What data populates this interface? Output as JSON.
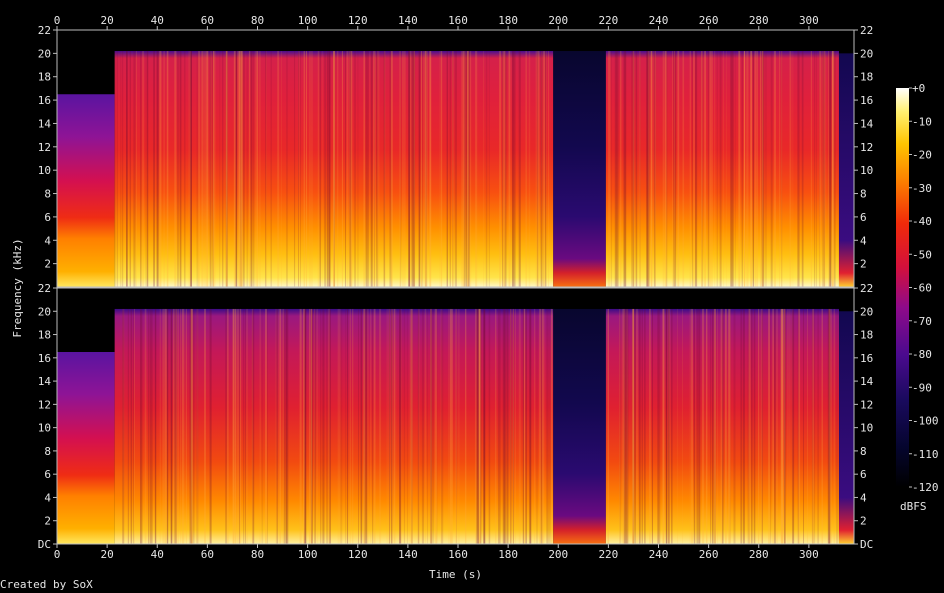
{
  "chart_data": {
    "type": "heatmap",
    "subtype": "spectrogram",
    "xlabel": "Time (s)",
    "ylabel": "Frequency (kHz)",
    "xlim": [
      0,
      318
    ],
    "ylim": [
      0,
      22
    ],
    "x_ticks": [
      "0",
      "20",
      "40",
      "60",
      "80",
      "100",
      "120",
      "140",
      "160",
      "180",
      "200",
      "220",
      "240",
      "260",
      "280",
      "300"
    ],
    "y_ticks": [
      "DC",
      "2",
      "4",
      "6",
      "8",
      "10",
      "12",
      "14",
      "16",
      "18",
      "20",
      "22"
    ],
    "channels": 2,
    "colorbar": {
      "label": "dBFS",
      "range": [
        -120,
        0
      ],
      "ticks": [
        "+0",
        "-10",
        "-20",
        "-30",
        "-40",
        "-50",
        "-60",
        "-70",
        "-80",
        "-90",
        "-100",
        "-110",
        "-120"
      ]
    },
    "segments": [
      {
        "start": 0,
        "end": 23,
        "level": "moderate",
        "max_khz": 16.5
      },
      {
        "start": 23,
        "end": 198,
        "level": "high",
        "max_khz": 20.2
      },
      {
        "start": 198,
        "end": 219,
        "level": "quiet",
        "max_khz": 3.0
      },
      {
        "start": 219,
        "end": 312,
        "level": "high",
        "max_khz": 20.2
      },
      {
        "start": 312,
        "end": 318,
        "level": "fade",
        "max_khz": 20.0
      }
    ],
    "credit": "Created by SoX"
  }
}
